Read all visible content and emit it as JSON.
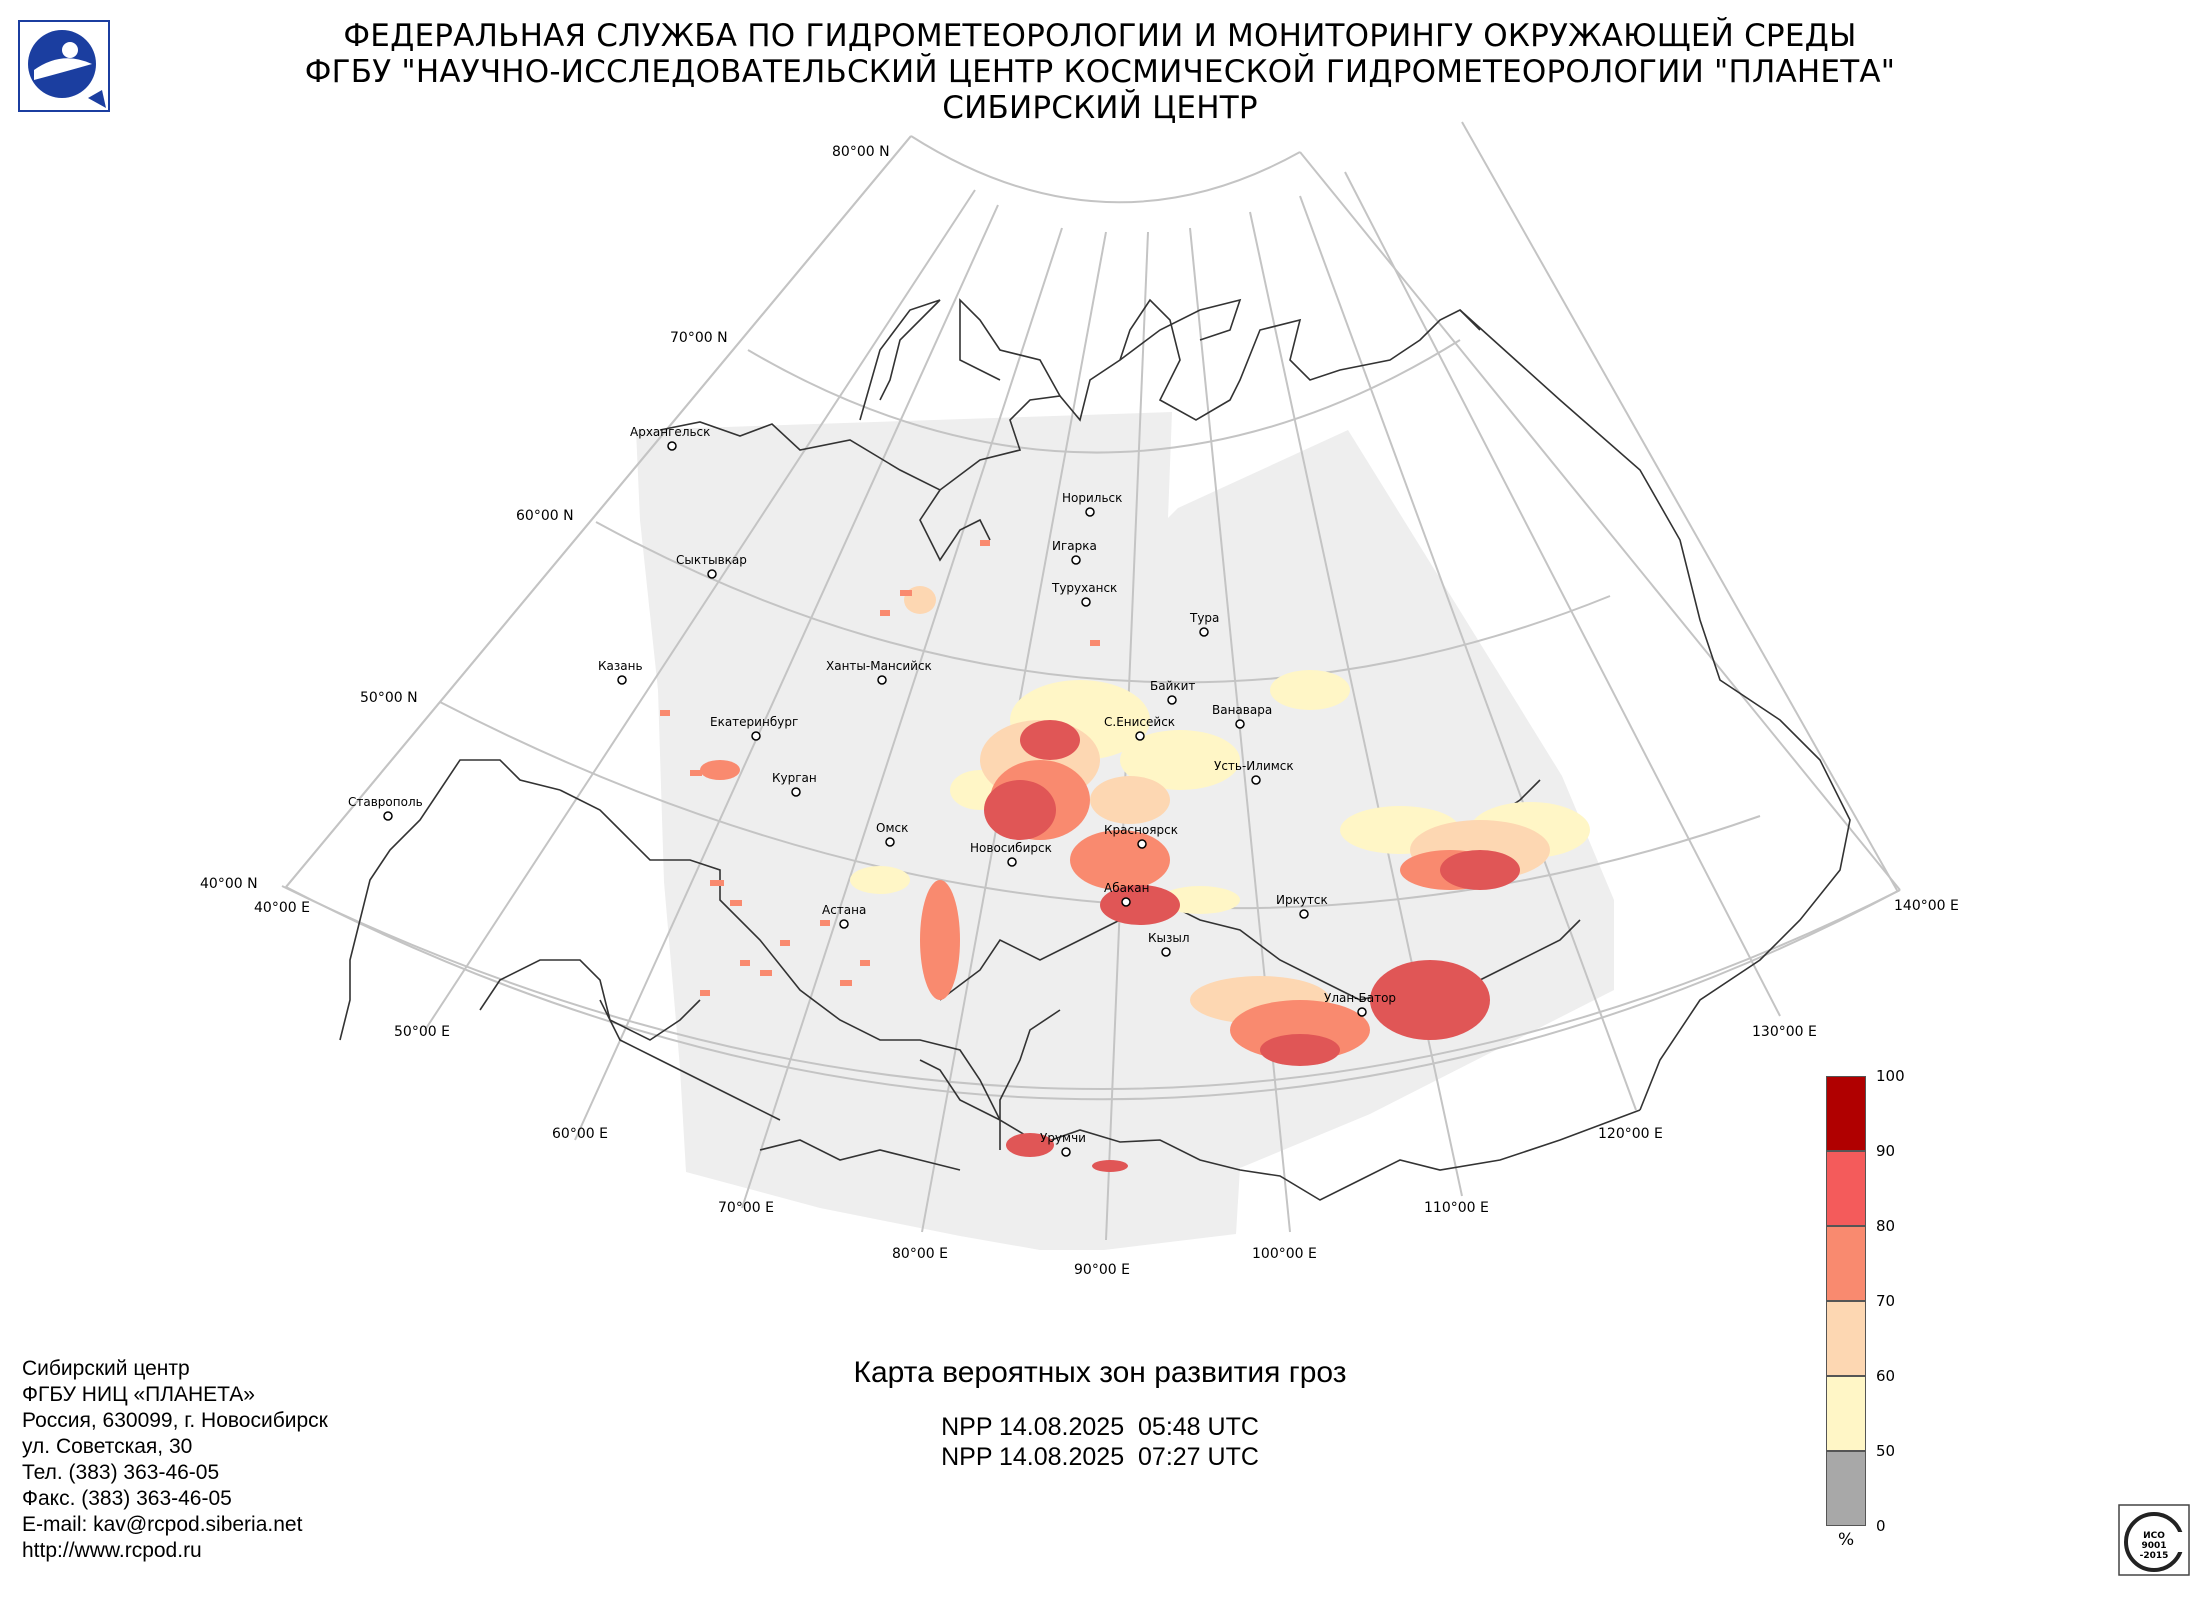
{
  "header": {
    "line1": "ФЕДЕРАЛЬНАЯ СЛУЖБА ПО ГИДРОМЕТЕОРОЛОГИИ И МОНИТОРИНГУ ОКРУЖАЮЩЕЙ СРЕДЫ",
    "line2": "ФГБУ \"НАУЧНО-ИССЛЕДОВАТЕЛЬСКИЙ ЦЕНТР КОСМИЧЕСКОЙ ГИДРОМЕТЕОРОЛОГИИ \"ПЛАНЕТА\"",
    "line3": "СИБИРСКИЙ ЦЕНТР"
  },
  "map": {
    "lat_labels": [
      "80°00 N",
      "70°00 N",
      "60°00 N",
      "50°00 N",
      "40°00 N"
    ],
    "lon_labels": [
      "40°00 E",
      "50°00 E",
      "60°00 E",
      "70°00 E",
      "80°00 E",
      "90°00 E",
      "100°00 E",
      "110°00 E",
      "120°00 E",
      "130°00 E",
      "140°00 E"
    ],
    "cities": [
      "Архангельск",
      "Сыктывкар",
      "Казань",
      "Екатеринбург",
      "Курган",
      "Ставрополь",
      "Ханты-Мансийск",
      "Омск",
      "Астана",
      "Новосибирск",
      "Норильск",
      "Игарка",
      "Туруханск",
      "Тура",
      "Байкит",
      "Ванавара",
      "С.Енисейск",
      "Усть-Илимск",
      "Красноярск",
      "Абакан",
      "Кызыл",
      "Иркутск",
      "Улан-Батор",
      "Урумчи"
    ]
  },
  "legend": {
    "ticks": [
      "100",
      "90",
      "80",
      "70",
      "60",
      "50",
      "0"
    ],
    "unit": "%",
    "colors": [
      "#b00000",
      "#f45b5b",
      "#f98a6f",
      "#fdd7b2",
      "#fff6c6",
      "#a8a8a8"
    ]
  },
  "caption": {
    "title": "Карта вероятных зон развития гроз",
    "line1": "NPP 14.08.2025  05:48 UTC",
    "line2": "NPP 14.08.2025  07:27 UTC"
  },
  "address": {
    "lines": [
      "Сибирский центр",
      "ФГБУ НИЦ «ПЛАНЕТА»",
      "Россия, 630099, г. Новосибирск",
      "ул. Советская, 30",
      "Тел. (383) 363-46-05",
      "Факс. (383) 363-46-05",
      "E-mail: kav@rcpod.siberia.net",
      "http://www.rcpod.ru"
    ]
  },
  "iso": {
    "text1": "ИСО",
    "text2": "9001",
    "text3": "-2015"
  }
}
